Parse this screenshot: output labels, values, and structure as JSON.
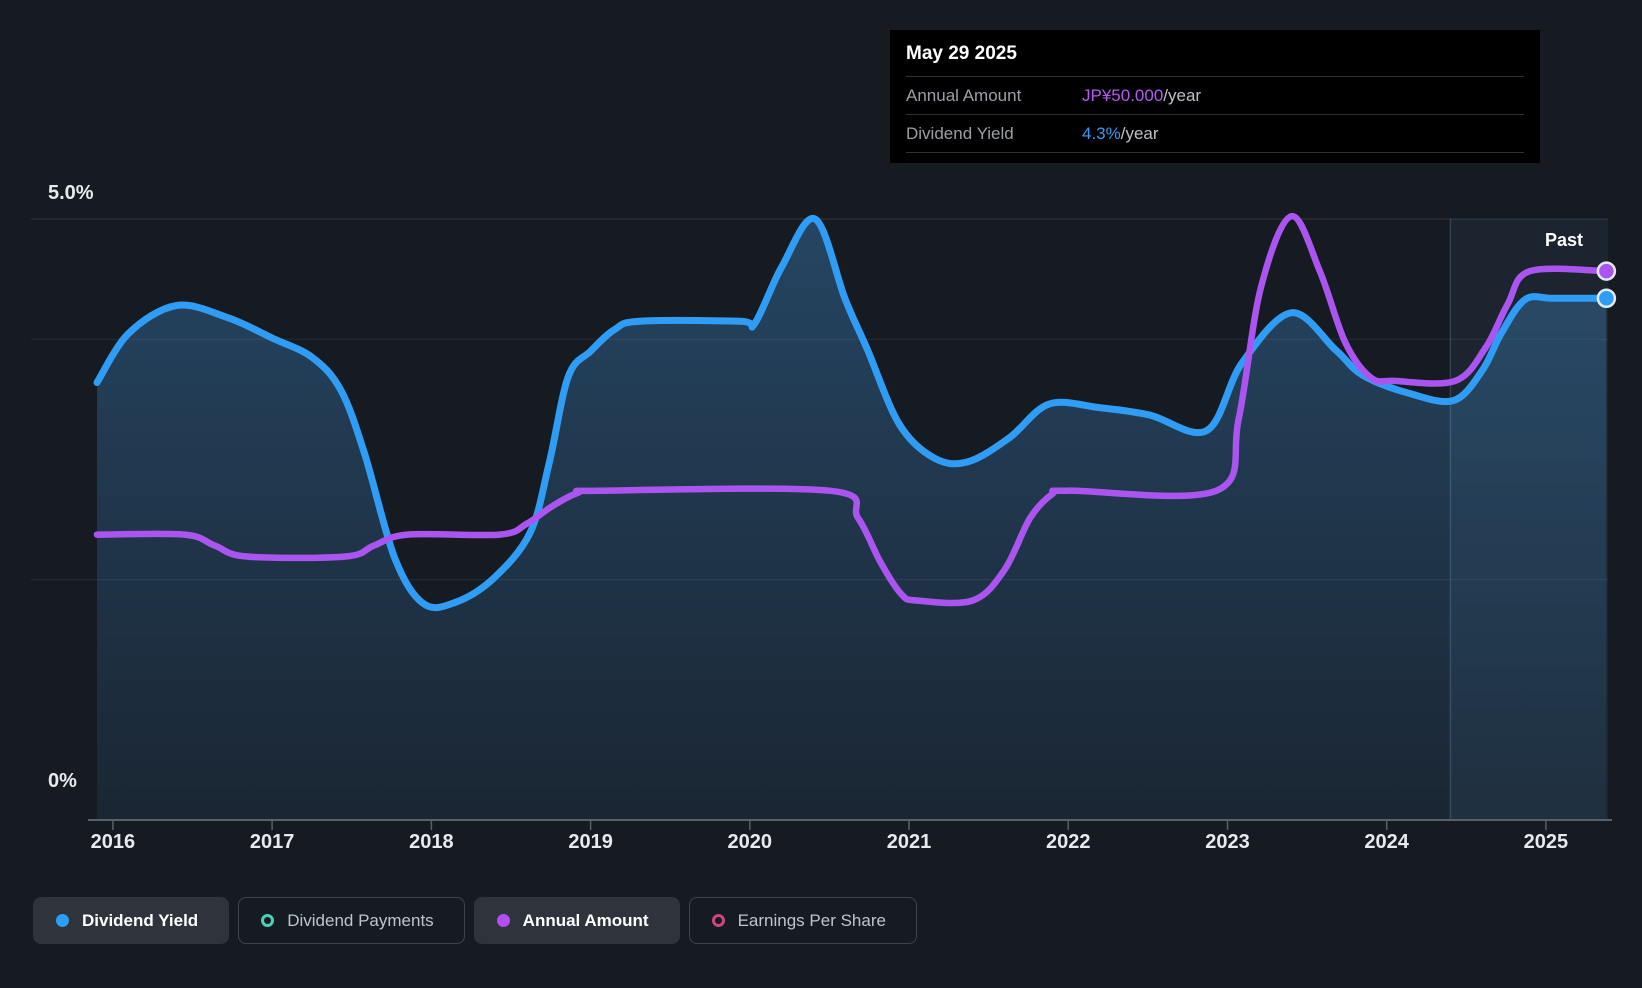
{
  "tooltip": {
    "date": "May 29 2025",
    "rows": [
      {
        "label": "Annual Amount",
        "value": "JP¥50.000",
        "suffix": "/year",
        "value_color": "#b55cf2"
      },
      {
        "label": "Dividend Yield",
        "value": "4.3%",
        "suffix": "/year",
        "value_color": "#2f9df5"
      }
    ]
  },
  "axes": {
    "y_top_label": "5.0%",
    "y_bottom_label": "0%",
    "x_ticks": [
      "2016",
      "2017",
      "2018",
      "2019",
      "2020",
      "2021",
      "2022",
      "2023",
      "2024",
      "2025"
    ]
  },
  "past_label": "Past",
  "legend": [
    {
      "label": "Dividend Yield",
      "color": "#2f9df5",
      "active": true
    },
    {
      "label": "Dividend Payments",
      "color": "#4ed0b8",
      "active": false
    },
    {
      "label": "Annual Amount",
      "color": "#b14ff2",
      "active": true
    },
    {
      "label": "Earnings Per Share",
      "color": "#c9497e",
      "active": false
    }
  ],
  "chart_data": {
    "type": "line",
    "title": "Dividend history chart",
    "x_range": [
      2015.9,
      2025.39
    ],
    "x_ticks": [
      2016,
      2017,
      2018,
      2019,
      2020,
      2021,
      2022,
      2023,
      2024,
      2025
    ],
    "past_region": {
      "start_year": 2024.4,
      "label": "Past"
    },
    "yield_axis": {
      "min": 0,
      "max": 5,
      "unit": "%",
      "gridlines": [
        5,
        4,
        2
      ],
      "top_label": "5.0%",
      "bottom_label": "0%"
    },
    "amount_axis": {
      "min": 0,
      "max": 54.75,
      "unit": "JP¥"
    },
    "series": [
      {
        "name": "Dividend Yield",
        "axis": "yield",
        "unit": "%",
        "color": "#2f9df5",
        "fill": true,
        "end_value_label": "4.3%/year",
        "points": [
          [
            2015.9,
            3.64
          ],
          [
            2016.1,
            4.05
          ],
          [
            2016.4,
            4.28
          ],
          [
            2016.72,
            4.18
          ],
          [
            2017.0,
            4.01
          ],
          [
            2017.25,
            3.85
          ],
          [
            2017.43,
            3.58
          ],
          [
            2017.58,
            3.05
          ],
          [
            2017.77,
            2.18
          ],
          [
            2017.95,
            1.8
          ],
          [
            2018.15,
            1.81
          ],
          [
            2018.39,
            2.01
          ],
          [
            2018.62,
            2.39
          ],
          [
            2018.74,
            2.97
          ],
          [
            2018.86,
            3.69
          ],
          [
            2019.0,
            3.9
          ],
          [
            2019.15,
            4.08
          ],
          [
            2019.31,
            4.15
          ],
          [
            2019.94,
            4.15
          ],
          [
            2020.03,
            4.13
          ],
          [
            2020.2,
            4.6
          ],
          [
            2020.41,
            5.0
          ],
          [
            2020.6,
            4.33
          ],
          [
            2020.74,
            3.91
          ],
          [
            2020.94,
            3.29
          ],
          [
            2021.16,
            3.01
          ],
          [
            2021.37,
            2.98
          ],
          [
            2021.63,
            3.18
          ],
          [
            2021.88,
            3.46
          ],
          [
            2022.2,
            3.43
          ],
          [
            2022.51,
            3.37
          ],
          [
            2022.87,
            3.24
          ],
          [
            2023.09,
            3.8
          ],
          [
            2023.4,
            4.22
          ],
          [
            2023.68,
            3.91
          ],
          [
            2023.85,
            3.7
          ],
          [
            2024.14,
            3.55
          ],
          [
            2024.42,
            3.49
          ],
          [
            2024.6,
            3.74
          ],
          [
            2024.72,
            4.05
          ],
          [
            2024.87,
            4.33
          ],
          [
            2025.05,
            4.34
          ],
          [
            2025.38,
            4.34
          ]
        ]
      },
      {
        "name": "Annual Amount",
        "axis": "amount",
        "unit": "JP¥/year",
        "color": "#ab55f0",
        "fill": false,
        "end_value_label": "JP¥50.000/year",
        "points": [
          [
            2015.9,
            26
          ],
          [
            2016.45,
            26
          ],
          [
            2016.64,
            25
          ],
          [
            2016.84,
            24
          ],
          [
            2017.46,
            24
          ],
          [
            2017.64,
            25
          ],
          [
            2017.85,
            26
          ],
          [
            2018.43,
            26
          ],
          [
            2018.6,
            27
          ],
          [
            2018.76,
            28.6
          ],
          [
            2018.92,
            29.8
          ],
          [
            2019.06,
            30
          ],
          [
            2020.5,
            30
          ],
          [
            2020.68,
            27.5
          ],
          [
            2020.82,
            23.5
          ],
          [
            2020.95,
            20.6
          ],
          [
            2021.05,
            20
          ],
          [
            2021.4,
            20
          ],
          [
            2021.6,
            22.8
          ],
          [
            2021.76,
            27.5
          ],
          [
            2021.9,
            29.7
          ],
          [
            2022.0,
            30
          ],
          [
            2022.93,
            30
          ],
          [
            2023.07,
            36.5
          ],
          [
            2023.21,
            48.5
          ],
          [
            2023.4,
            55
          ],
          [
            2023.58,
            50
          ],
          [
            2023.74,
            43.5
          ],
          [
            2023.9,
            40.3
          ],
          [
            2024.05,
            40
          ],
          [
            2024.43,
            40
          ],
          [
            2024.62,
            43
          ],
          [
            2024.76,
            47
          ],
          [
            2024.9,
            50
          ],
          [
            2025.38,
            50
          ]
        ]
      }
    ],
    "hidden_series": [
      "Dividend Payments",
      "Earnings Per Share"
    ]
  }
}
